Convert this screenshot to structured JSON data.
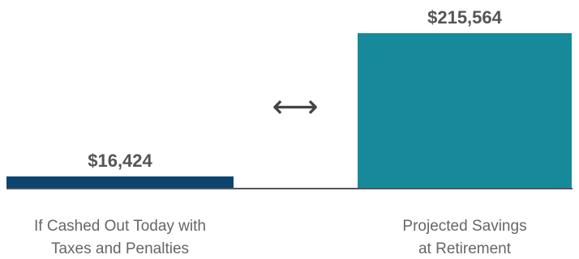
{
  "chart_data": {
    "type": "bar",
    "categories": [
      [
        "If Cashed Out Today with",
        "Taxes and Penalties"
      ],
      [
        "Projected Savings",
        "at Retirement"
      ]
    ],
    "values": [
      16424,
      215564
    ],
    "value_labels": [
      "$16,424",
      "$215,564"
    ],
    "colors": [
      "#0d4470",
      "#168a9b"
    ],
    "ylim": [
      0,
      215564
    ],
    "grid": false,
    "title": "",
    "xlabel": "",
    "ylabel": ""
  },
  "arrow_icon": "left-right-arrow-icon",
  "arrow_glyph": "⟷",
  "colors": {
    "baseline": "#555555",
    "value_text": "#555555",
    "category_text": "#666666"
  }
}
